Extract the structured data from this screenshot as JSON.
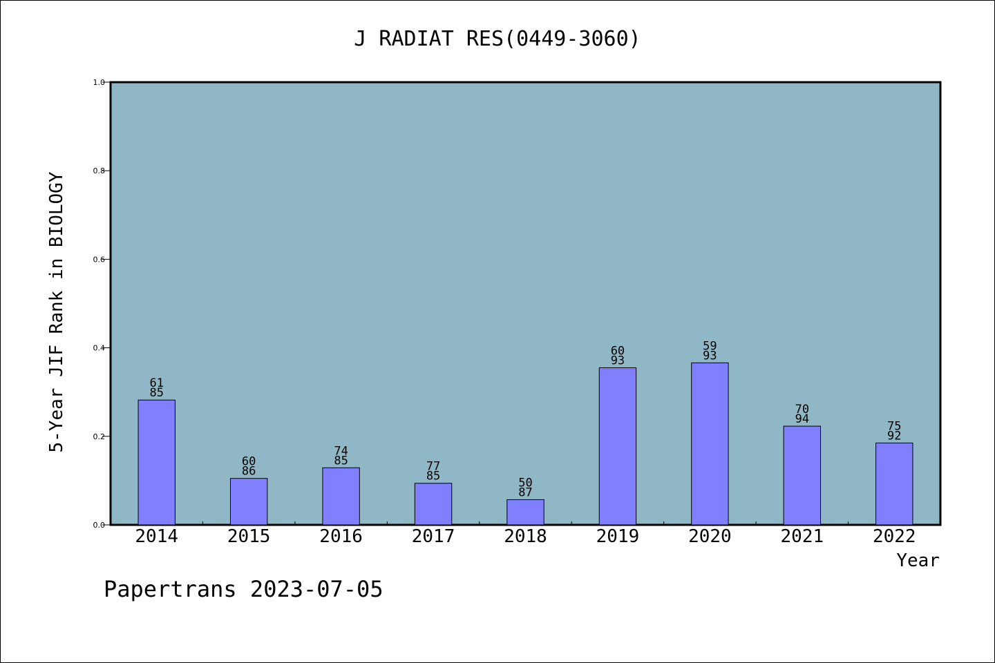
{
  "chart_data": {
    "type": "bar",
    "title": "J RADIAT RES(0449-3060)",
    "xlabel": "Year",
    "ylabel": "5-Year JIF Rank in BIOLOGY",
    "ylim": [
      0,
      1.0
    ],
    "yticks": [
      "0.0",
      "0.2",
      "0.4",
      "0.6",
      "0.8",
      "1.0"
    ],
    "ytick_values": [
      0,
      0.2,
      0.4,
      0.6,
      0.8,
      1.0
    ],
    "categories": [
      "2014",
      "2015",
      "2016",
      "2017",
      "2018",
      "2019",
      "2020",
      "2021",
      "2022"
    ],
    "values": [
      0.282,
      0.105,
      0.129,
      0.094,
      0.057,
      0.355,
      0.366,
      0.223,
      0.185
    ],
    "labels_top": [
      "61",
      "60",
      "74",
      "77",
      "50",
      "60",
      "59",
      "70",
      "75"
    ],
    "labels_bottom": [
      "85",
      "86",
      "85",
      "85",
      "87",
      "93",
      "93",
      "94",
      "92"
    ],
    "grid": false,
    "colors": {
      "plot_bg": "#8fb7c5",
      "bar": "#8080ff",
      "bar_edge": "#000000"
    }
  },
  "footer": {
    "text": "Papertrans 2023-07-05"
  }
}
